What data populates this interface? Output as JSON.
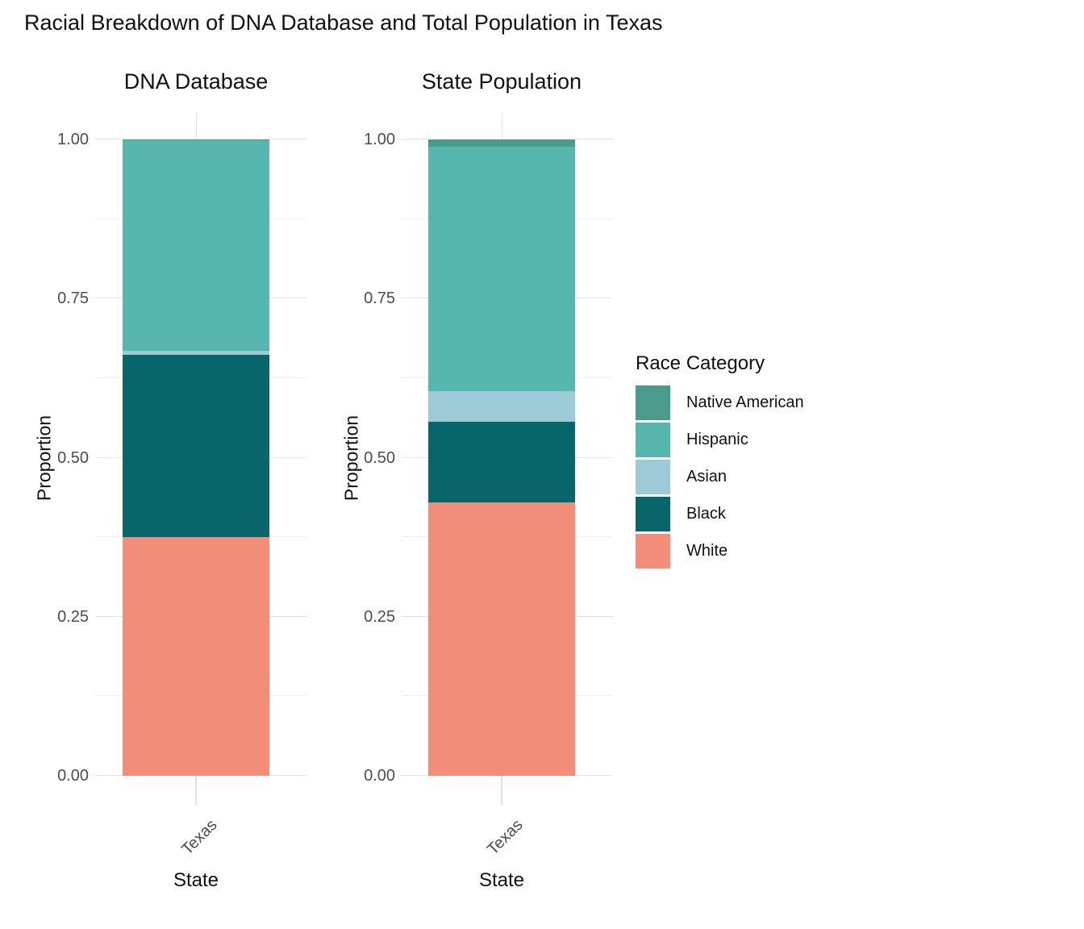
{
  "figure": {
    "title": "Racial Breakdown of DNA Database and Total Population in Texas"
  },
  "legend": {
    "title": "Race Category",
    "items": [
      {
        "label": "Native American",
        "color": "#4A9B8C"
      },
      {
        "label": "Hispanic",
        "color": "#57B6AD"
      },
      {
        "label": "Asian",
        "color": "#9CCAD6"
      },
      {
        "label": "Black",
        "color": "#08666B"
      },
      {
        "label": "White",
        "color": "#F28D7A"
      }
    ]
  },
  "colors": {
    "White": "#F28D7A",
    "Black": "#08666B",
    "Asian": "#9CCAD6",
    "Hispanic": "#57B6AD",
    "Native American": "#4A9B8C"
  },
  "chart_data": [
    {
      "type": "bar",
      "stacked": true,
      "title": "DNA Database",
      "xlabel": "State",
      "ylabel": "Proportion",
      "categories": [
        "Texas"
      ],
      "ylim": [
        0,
        1
      ],
      "yticks": [
        0,
        0.25,
        0.5,
        0.75,
        1
      ],
      "ytick_labels": [
        "0.00",
        "0.25",
        "0.50",
        "0.75",
        "1.00"
      ],
      "yticks_minor": [
        0.125,
        0.375,
        0.625,
        0.875
      ],
      "grid": true,
      "series": [
        {
          "name": "White",
          "values": [
            0.375
          ]
        },
        {
          "name": "Black",
          "values": [
            0.287
          ]
        },
        {
          "name": "Asian",
          "values": [
            0.006
          ]
        },
        {
          "name": "Hispanic",
          "values": [
            0.331
          ]
        },
        {
          "name": "Native American",
          "values": [
            0.001
          ]
        }
      ]
    },
    {
      "type": "bar",
      "stacked": true,
      "title": "State Population",
      "xlabel": "State",
      "ylabel": "Proportion",
      "categories": [
        "Texas"
      ],
      "ylim": [
        0,
        1
      ],
      "yticks": [
        0,
        0.25,
        0.5,
        0.75,
        1
      ],
      "ytick_labels": [
        "0.00",
        "0.25",
        "0.50",
        "0.75",
        "1.00"
      ],
      "yticks_minor": [
        0.125,
        0.375,
        0.625,
        0.875
      ],
      "grid": true,
      "series": [
        {
          "name": "White",
          "values": [
            0.43
          ]
        },
        {
          "name": "Black",
          "values": [
            0.127
          ]
        },
        {
          "name": "Asian",
          "values": [
            0.047
          ]
        },
        {
          "name": "Hispanic",
          "values": [
            0.385
          ]
        },
        {
          "name": "Native American",
          "values": [
            0.011
          ]
        }
      ]
    }
  ]
}
